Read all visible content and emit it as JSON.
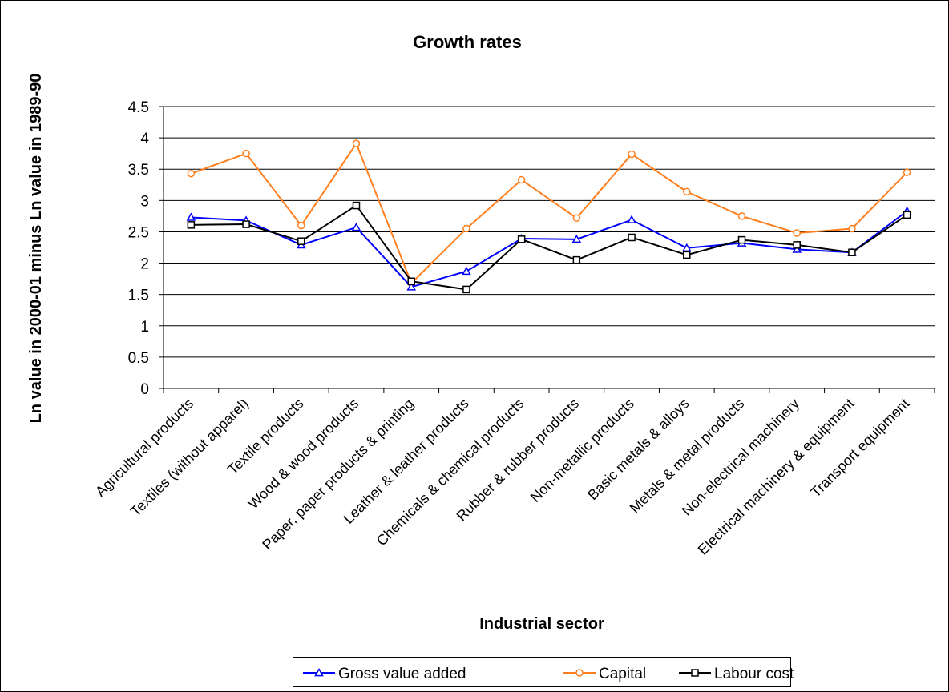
{
  "chart_data": {
    "type": "line",
    "title": "Growth rates",
    "xlabel": "Industrial sector",
    "ylabel": "Ln value in 2000-01 minus Ln value in 1989-90",
    "ylim": [
      0,
      4.5
    ],
    "yticks": [
      "0",
      "0.5",
      "1",
      "1.5",
      "2",
      "2.5",
      "3",
      "3.5",
      "4",
      "4.5"
    ],
    "grid": true,
    "legend_position": "bottom",
    "categories": [
      "Agricultural products",
      "Textiles (without apparel)",
      "Textile products",
      "Wood & wood products",
      "Paper, paper products & printing",
      "Leather & leather products",
      "Chemicals & chemical products",
      "Rubber & rubber products",
      "Non-metallic products",
      "Basic metals & alloys",
      "Metals & metal products",
      "Non-electrical machinery",
      "Electrical machinery & equipment",
      "Transport equipment"
    ],
    "series": [
      {
        "name": "Gross value added",
        "color": "#0000ff",
        "marker": "triangle",
        "values": [
          2.73,
          2.68,
          2.29,
          2.57,
          1.62,
          1.87,
          2.39,
          2.38,
          2.69,
          2.24,
          2.32,
          2.22,
          2.17,
          2.83
        ]
      },
      {
        "name": "Capital",
        "color": "#ff7f1e",
        "marker": "circle",
        "values": [
          3.43,
          3.75,
          2.6,
          3.91,
          1.68,
          2.55,
          3.33,
          2.72,
          3.74,
          3.14,
          2.75,
          2.48,
          2.55,
          3.45
        ]
      },
      {
        "name": "Labour cost",
        "color": "#000000",
        "marker": "square",
        "values": [
          2.61,
          2.62,
          2.35,
          2.92,
          1.71,
          1.58,
          2.38,
          2.05,
          2.41,
          2.13,
          2.37,
          2.29,
          2.17,
          2.77
        ]
      }
    ]
  }
}
